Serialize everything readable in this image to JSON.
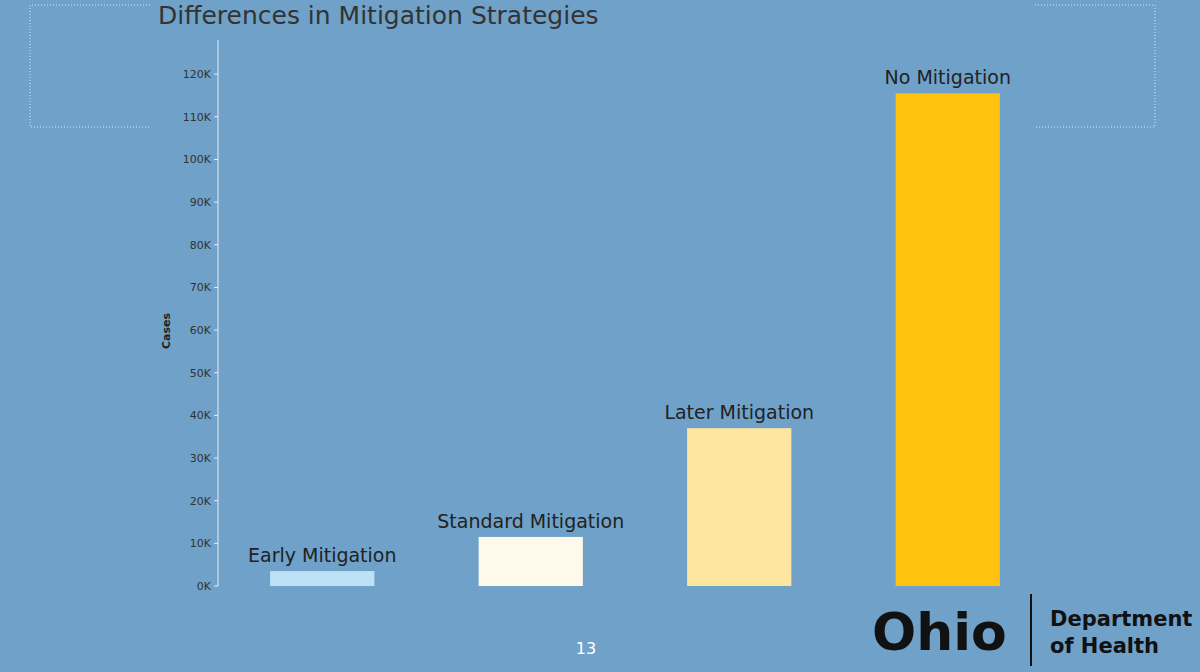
{
  "chart_data": {
    "type": "bar",
    "title": "Differences in Mitigation Strategies",
    "y_label": "Cases",
    "categories": [
      "Early Mitigation",
      "Standard Mitigation",
      "Later Mitigation",
      "No Mitigation"
    ],
    "values": [
      3500,
      11500,
      37000,
      115500
    ],
    "colors": [
      "#bfe1f6",
      "#fef9ea",
      "#fde59f",
      "#ffc20e"
    ],
    "ylim": [
      0,
      128000
    ],
    "yticks": [
      {
        "value": 0,
        "label": "0K"
      },
      {
        "value": 10000,
        "label": "10K"
      },
      {
        "value": 20000,
        "label": "20K"
      },
      {
        "value": 30000,
        "label": "30K"
      },
      {
        "value": 40000,
        "label": "40K"
      },
      {
        "value": 50000,
        "label": "50K"
      },
      {
        "value": 60000,
        "label": "60K"
      },
      {
        "value": 70000,
        "label": "70K"
      },
      {
        "value": 80000,
        "label": "80K"
      },
      {
        "value": 90000,
        "label": "90K"
      },
      {
        "value": 100000,
        "label": "100K"
      },
      {
        "value": 110000,
        "label": "110K"
      },
      {
        "value": 120000,
        "label": "120K"
      }
    ],
    "grid": false,
    "tick_labels": "y"
  },
  "footer": {
    "page_number": "13",
    "logo": "Ohio",
    "department": "Department",
    "department_line2": "of Health"
  }
}
